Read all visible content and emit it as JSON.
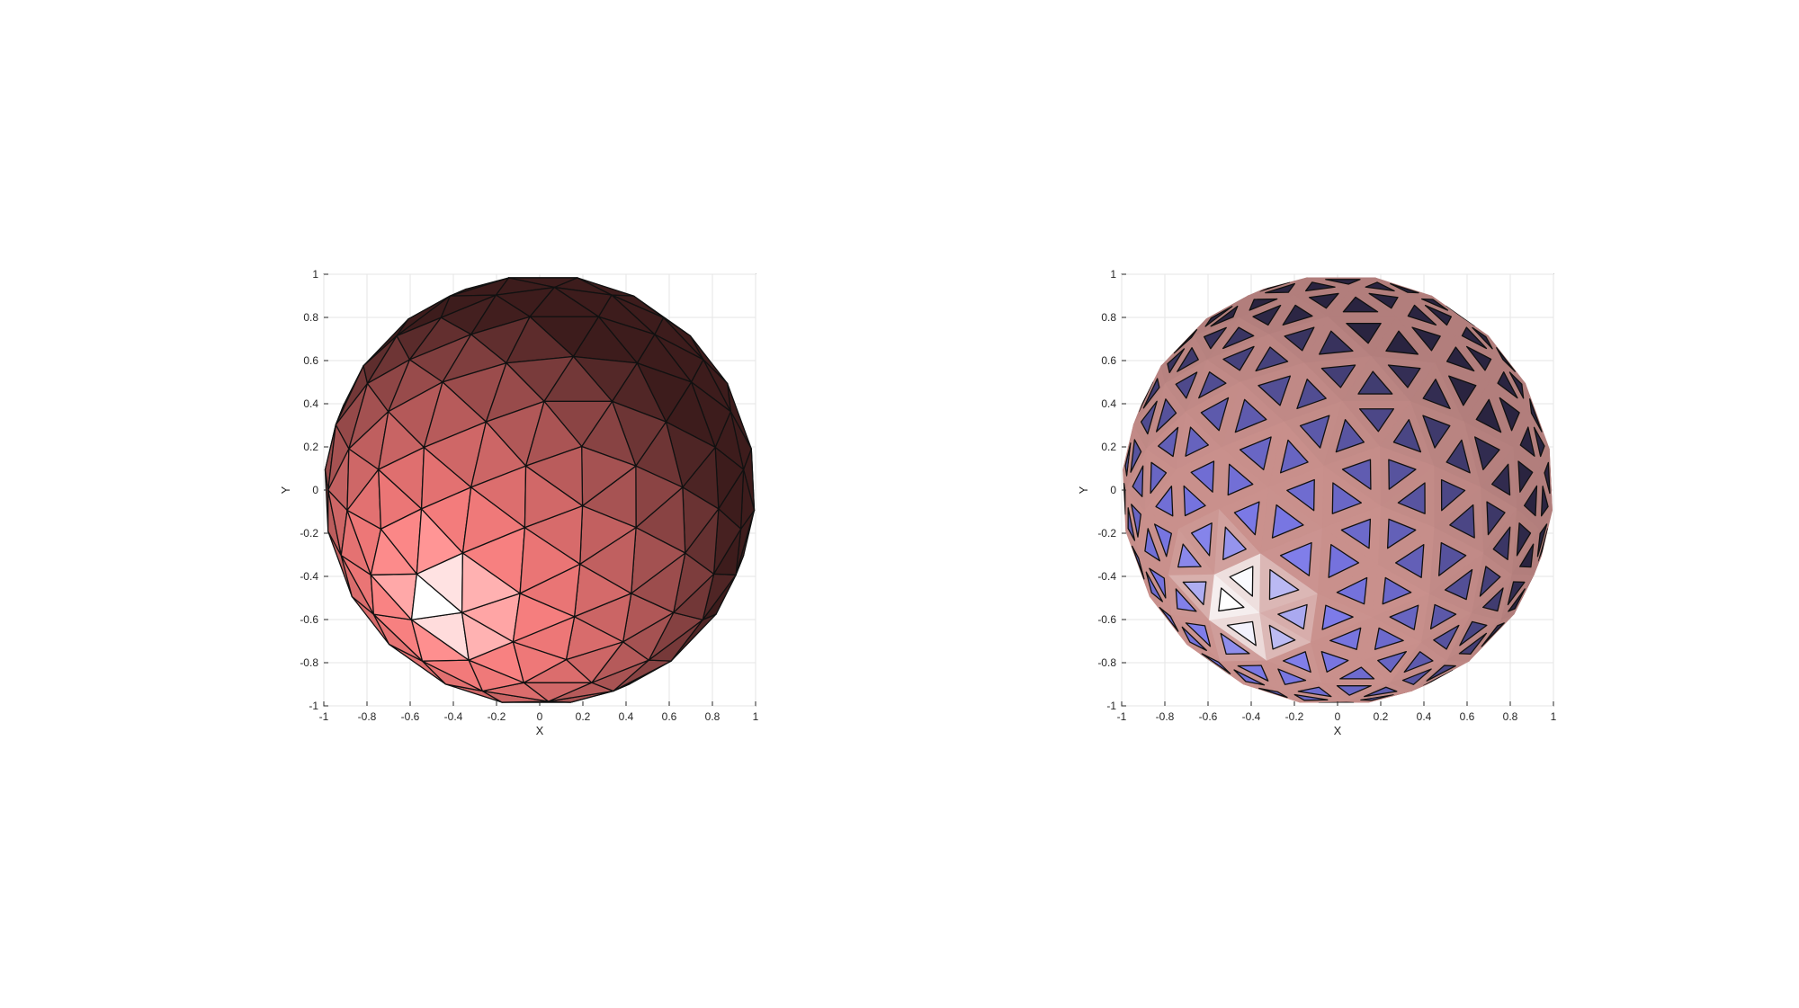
{
  "panels": [
    {
      "id": "left",
      "style": "faceted",
      "xlabel": "X",
      "ylabel": "Y",
      "xticks": [
        "-1",
        "-0.8",
        "-0.6",
        "-0.4",
        "-0.2",
        "0",
        "0.2",
        "0.4",
        "0.6",
        "0.8",
        "1"
      ],
      "yticks": [
        "1",
        "0.8",
        "0.6",
        "0.4",
        "0.2",
        "0",
        "-0.2",
        "-0.4",
        "-0.6",
        "-0.8",
        "-1"
      ],
      "xlim": [
        -1,
        1
      ],
      "ylim": [
        -1,
        1
      ],
      "grid": true,
      "colors": {
        "light": "#ff8080",
        "dark": "#3d1c1c",
        "edge": "#111111"
      }
    },
    {
      "id": "right",
      "style": "wireframe-holes",
      "xlabel": "X",
      "ylabel": "Y",
      "xticks": [
        "-1",
        "-0.8",
        "-0.6",
        "-0.4",
        "-0.2",
        "0",
        "0.2",
        "0.4",
        "0.6",
        "0.8",
        "1"
      ],
      "yticks": [
        "1",
        "0.8",
        "0.6",
        "0.4",
        "0.2",
        "0",
        "-0.2",
        "-0.4",
        "-0.6",
        "-0.8",
        "-1"
      ],
      "xlim": [
        -1,
        1
      ],
      "ylim": [
        -1,
        1
      ],
      "grid": true,
      "colors": {
        "frame": "#c9908c",
        "hole_light": "#7a78e8",
        "hole_dark": "#2a2440",
        "edge": "#111111"
      }
    }
  ]
}
